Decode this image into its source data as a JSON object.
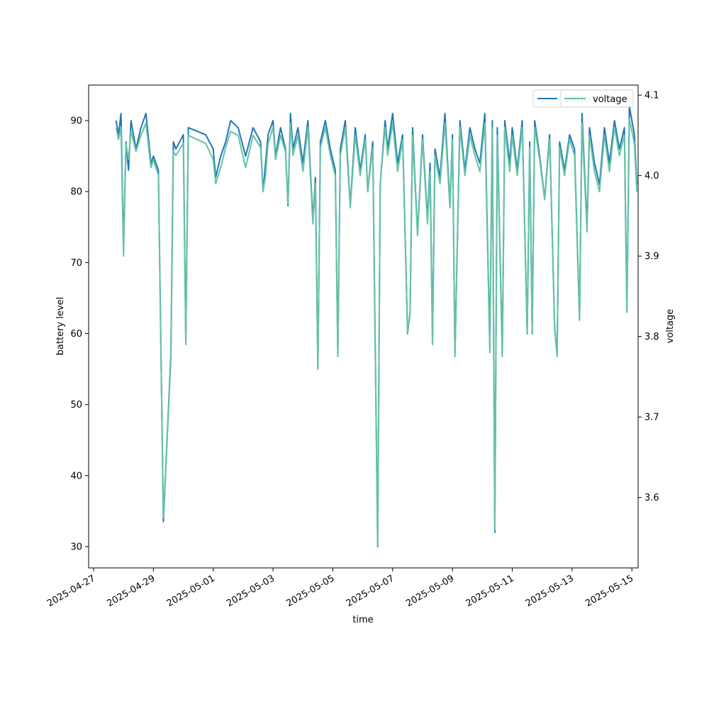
{
  "chart_data": {
    "type": "line",
    "title": "",
    "xlabel": "time",
    "ylabel_left": "battery level",
    "ylabel_right": "voltage",
    "grid": false,
    "legend_placement": "top-right",
    "x_tick_labels": [
      "2025-04-27",
      "2025-04-29",
      "2025-05-01",
      "2025-05-03",
      "2025-05-05",
      "2025-05-07",
      "2025-05-09",
      "2025-05-11",
      "2025-05-13",
      "2025-05-15"
    ],
    "xlim": [
      "2025-04-26 20:00",
      "2025-05-15 05:00"
    ],
    "ylim_left": [
      27,
      95
    ],
    "ylim_right": [
      3.5125,
      4.1125
    ],
    "y_left_ticks": [
      30,
      40,
      50,
      60,
      70,
      80,
      90
    ],
    "y_right_ticks": [
      3.6,
      3.7,
      3.8,
      3.9,
      4.0,
      4.1
    ],
    "series": [
      {
        "name": "battery",
        "axis": "left",
        "color": "#1f77b4",
        "points": [
          [
            "2025-04-27 18:00",
            90
          ],
          [
            "2025-04-27 20:00",
            88
          ],
          [
            "2025-04-27 22:00",
            91
          ],
          [
            "2025-04-28 00:00",
            72
          ],
          [
            "2025-04-28 02:00",
            87
          ],
          [
            "2025-04-28 04:00",
            83
          ],
          [
            "2025-04-28 06:00",
            90
          ],
          [
            "2025-04-28 10:00",
            86
          ],
          [
            "2025-04-28 14:00",
            89
          ],
          [
            "2025-04-28 18:00",
            91
          ],
          [
            "2025-04-28 22:00",
            84
          ],
          [
            "2025-04-29 00:00",
            85
          ],
          [
            "2025-04-29 04:00",
            83
          ],
          [
            "2025-04-29 08:00",
            33.5
          ],
          [
            "2025-04-29 14:00",
            57
          ],
          [
            "2025-04-29 16:00",
            87
          ],
          [
            "2025-04-29 18:00",
            86
          ],
          [
            "2025-04-30 00:00",
            88
          ],
          [
            "2025-04-30 02:00",
            59
          ],
          [
            "2025-04-30 04:00",
            89
          ],
          [
            "2025-04-30 18:00",
            88
          ],
          [
            "2025-05-01 00:00",
            86
          ],
          [
            "2025-05-01 02:00",
            82
          ],
          [
            "2025-05-01 06:00",
            85
          ],
          [
            "2025-05-01 10:00",
            87
          ],
          [
            "2025-05-01 14:00",
            90
          ],
          [
            "2025-05-01 20:00",
            89
          ],
          [
            "2025-05-02 02:00",
            85
          ],
          [
            "2025-05-02 08:00",
            89
          ],
          [
            "2025-05-02 14:00",
            87
          ],
          [
            "2025-05-02 16:00",
            80
          ],
          [
            "2025-05-02 18:00",
            84
          ],
          [
            "2025-05-02 20:00",
            88
          ],
          [
            "2025-05-03 00:00",
            90
          ],
          [
            "2025-05-03 02:00",
            85
          ],
          [
            "2025-05-03 06:00",
            89
          ],
          [
            "2025-05-03 10:00",
            86
          ],
          [
            "2025-05-03 12:00",
            78
          ],
          [
            "2025-05-03 14:00",
            91
          ],
          [
            "2025-05-03 16:00",
            86
          ],
          [
            "2025-05-03 20:00",
            89
          ],
          [
            "2025-05-04 00:00",
            84
          ],
          [
            "2025-05-04 04:00",
            90
          ],
          [
            "2025-05-04 08:00",
            76
          ],
          [
            "2025-05-04 10:00",
            82
          ],
          [
            "2025-05-04 12:00",
            55
          ],
          [
            "2025-05-04 14:00",
            87
          ],
          [
            "2025-05-04 18:00",
            90
          ],
          [
            "2025-05-04 22:00",
            86
          ],
          [
            "2025-05-05 02:00",
            83
          ],
          [
            "2025-05-05 04:00",
            57
          ],
          [
            "2025-05-05 06:00",
            86
          ],
          [
            "2025-05-05 10:00",
            90
          ],
          [
            "2025-05-05 14:00",
            78
          ],
          [
            "2025-05-05 18:00",
            89
          ],
          [
            "2025-05-05 22:00",
            83
          ],
          [
            "2025-05-06 02:00",
            88
          ],
          [
            "2025-05-06 04:00",
            80
          ],
          [
            "2025-05-06 08:00",
            87
          ],
          [
            "2025-05-06 12:00",
            30
          ],
          [
            "2025-05-06 14:00",
            81
          ],
          [
            "2025-05-06 18:00",
            90
          ],
          [
            "2025-05-06 20:00",
            86
          ],
          [
            "2025-05-07 00:00",
            91
          ],
          [
            "2025-05-07 04:00",
            84
          ],
          [
            "2025-05-07 08:00",
            88
          ],
          [
            "2025-05-07 12:00",
            60
          ],
          [
            "2025-05-07 14:00",
            63
          ],
          [
            "2025-05-07 16:00",
            89
          ],
          [
            "2025-05-07 20:00",
            74
          ],
          [
            "2025-05-08 00:00",
            88
          ],
          [
            "2025-05-08 04:00",
            76
          ],
          [
            "2025-05-08 06:00",
            84
          ],
          [
            "2025-05-08 08:00",
            59
          ],
          [
            "2025-05-08 10:00",
            86
          ],
          [
            "2025-05-08 14:00",
            82
          ],
          [
            "2025-05-08 18:00",
            91
          ],
          [
            "2025-05-08 22:00",
            78
          ],
          [
            "2025-05-09 00:00",
            88
          ],
          [
            "2025-05-09 02:00",
            57
          ],
          [
            "2025-05-09 06:00",
            90
          ],
          [
            "2025-05-09 10:00",
            83
          ],
          [
            "2025-05-09 14:00",
            89
          ],
          [
            "2025-05-09 18:00",
            86
          ],
          [
            "2025-05-09 22:00",
            84
          ],
          [
            "2025-05-10 02:00",
            91
          ],
          [
            "2025-05-10 06:00",
            58
          ],
          [
            "2025-05-10 08:00",
            90
          ],
          [
            "2025-05-10 10:00",
            32
          ],
          [
            "2025-05-10 12:00",
            89
          ],
          [
            "2025-05-10 16:00",
            57
          ],
          [
            "2025-05-10 18:00",
            90
          ],
          [
            "2025-05-10 22:00",
            84
          ],
          [
            "2025-05-11 00:00",
            89
          ],
          [
            "2025-05-11 04:00",
            83
          ],
          [
            "2025-05-11 08:00",
            90
          ],
          [
            "2025-05-11 12:00",
            60
          ],
          [
            "2025-05-11 14:00",
            87
          ],
          [
            "2025-05-11 16:00",
            60
          ],
          [
            "2025-05-11 18:00",
            90
          ],
          [
            "2025-05-11 22:00",
            85
          ],
          [
            "2025-05-12 02:00",
            79
          ],
          [
            "2025-05-12 06:00",
            88
          ],
          [
            "2025-05-12 10:00",
            61
          ],
          [
            "2025-05-12 12:00",
            57
          ],
          [
            "2025-05-12 14:00",
            87
          ],
          [
            "2025-05-12 18:00",
            83
          ],
          [
            "2025-05-12 22:00",
            88
          ],
          [
            "2025-05-13 02:00",
            86
          ],
          [
            "2025-05-13 06:00",
            62
          ],
          [
            "2025-05-13 08:00",
            91
          ],
          [
            "2025-05-13 12:00",
            75
          ],
          [
            "2025-05-13 14:00",
            89
          ],
          [
            "2025-05-13 18:00",
            84
          ],
          [
            "2025-05-13 22:00",
            81
          ],
          [
            "2025-05-14 02:00",
            89
          ],
          [
            "2025-05-14 06:00",
            84
          ],
          [
            "2025-05-14 10:00",
            90
          ],
          [
            "2025-05-14 14:00",
            86
          ],
          [
            "2025-05-14 18:00",
            89
          ],
          [
            "2025-05-14 20:00",
            63
          ],
          [
            "2025-05-14 22:00",
            92
          ],
          [
            "2025-05-15 02:00",
            88
          ],
          [
            "2025-05-15 04:00",
            81
          ]
        ]
      },
      {
        "name": "voltage",
        "axis": "right",
        "color": "#66c2a5",
        "points": [
          [
            "2025-04-27 18:00",
            4.06
          ],
          [
            "2025-04-27 20:00",
            4.045
          ],
          [
            "2025-04-27 22:00",
            4.06
          ],
          [
            "2025-04-28 00:00",
            3.9
          ],
          [
            "2025-04-28 02:00",
            4.04
          ],
          [
            "2025-04-28 04:00",
            4.02
          ],
          [
            "2025-04-28 06:00",
            4.055
          ],
          [
            "2025-04-28 10:00",
            4.03
          ],
          [
            "2025-04-28 14:00",
            4.05
          ],
          [
            "2025-04-28 18:00",
            4.065
          ],
          [
            "2025-04-28 22:00",
            4.01
          ],
          [
            "2025-04-29 00:00",
            4.02
          ],
          [
            "2025-04-29 04:00",
            4.0
          ],
          [
            "2025-04-29 08:00",
            3.575
          ],
          [
            "2025-04-29 14:00",
            3.77
          ],
          [
            "2025-04-29 16:00",
            4.03
          ],
          [
            "2025-04-29 18:00",
            4.025
          ],
          [
            "2025-04-30 00:00",
            4.04
          ],
          [
            "2025-04-30 02:00",
            3.79
          ],
          [
            "2025-04-30 04:00",
            4.05
          ],
          [
            "2025-04-30 18:00",
            4.04
          ],
          [
            "2025-05-01 00:00",
            4.02
          ],
          [
            "2025-05-01 02:00",
            3.99
          ],
          [
            "2025-05-01 06:00",
            4.01
          ],
          [
            "2025-05-01 10:00",
            4.035
          ],
          [
            "2025-05-01 14:00",
            4.055
          ],
          [
            "2025-05-01 20:00",
            4.05
          ],
          [
            "2025-05-02 02:00",
            4.01
          ],
          [
            "2025-05-02 08:00",
            4.05
          ],
          [
            "2025-05-02 14:00",
            4.035
          ],
          [
            "2025-05-02 16:00",
            3.98
          ],
          [
            "2025-05-02 18:00",
            4.0
          ],
          [
            "2025-05-02 20:00",
            4.04
          ],
          [
            "2025-05-03 00:00",
            4.06
          ],
          [
            "2025-05-03 02:00",
            4.02
          ],
          [
            "2025-05-03 06:00",
            4.05
          ],
          [
            "2025-05-03 10:00",
            4.03
          ],
          [
            "2025-05-03 12:00",
            3.965
          ],
          [
            "2025-05-03 14:00",
            4.065
          ],
          [
            "2025-05-03 16:00",
            4.025
          ],
          [
            "2025-05-03 20:00",
            4.05
          ],
          [
            "2025-05-04 00:00",
            4.005
          ],
          [
            "2025-05-04 04:00",
            4.06
          ],
          [
            "2025-05-04 08:00",
            3.94
          ],
          [
            "2025-05-04 10:00",
            3.99
          ],
          [
            "2025-05-04 12:00",
            3.76
          ],
          [
            "2025-05-04 14:00",
            4.035
          ],
          [
            "2025-05-04 18:00",
            4.06
          ],
          [
            "2025-05-04 22:00",
            4.025
          ],
          [
            "2025-05-05 02:00",
            4.0
          ],
          [
            "2025-05-05 04:00",
            3.775
          ],
          [
            "2025-05-05 06:00",
            4.025
          ],
          [
            "2025-05-05 10:00",
            4.06
          ],
          [
            "2025-05-05 14:00",
            3.96
          ],
          [
            "2025-05-05 18:00",
            4.05
          ],
          [
            "2025-05-05 22:00",
            4.0
          ],
          [
            "2025-05-06 02:00",
            4.045
          ],
          [
            "2025-05-06 04:00",
            3.98
          ],
          [
            "2025-05-06 08:00",
            4.035
          ],
          [
            "2025-05-06 12:00",
            3.54
          ],
          [
            "2025-05-06 14:00",
            3.99
          ],
          [
            "2025-05-06 18:00",
            4.06
          ],
          [
            "2025-05-06 20:00",
            4.025
          ],
          [
            "2025-05-07 00:00",
            4.065
          ],
          [
            "2025-05-07 04:00",
            4.005
          ],
          [
            "2025-05-07 08:00",
            4.045
          ],
          [
            "2025-05-07 12:00",
            3.805
          ],
          [
            "2025-05-07 14:00",
            3.83
          ],
          [
            "2025-05-07 16:00",
            4.05
          ],
          [
            "2025-05-07 20:00",
            3.925
          ],
          [
            "2025-05-08 00:00",
            4.045
          ],
          [
            "2025-05-08 04:00",
            3.94
          ],
          [
            "2025-05-08 06:00",
            4.005
          ],
          [
            "2025-05-08 08:00",
            3.79
          ],
          [
            "2025-05-08 10:00",
            4.025
          ],
          [
            "2025-05-08 14:00",
            3.99
          ],
          [
            "2025-05-08 18:00",
            4.065
          ],
          [
            "2025-05-08 22:00",
            3.96
          ],
          [
            "2025-05-09 00:00",
            4.045
          ],
          [
            "2025-05-09 02:00",
            3.775
          ],
          [
            "2025-05-09 06:00",
            4.06
          ],
          [
            "2025-05-09 10:00",
            4.0
          ],
          [
            "2025-05-09 14:00",
            4.05
          ],
          [
            "2025-05-09 18:00",
            4.025
          ],
          [
            "2025-05-09 22:00",
            4.005
          ],
          [
            "2025-05-10 02:00",
            4.065
          ],
          [
            "2025-05-10 06:00",
            3.78
          ],
          [
            "2025-05-10 08:00",
            4.06
          ],
          [
            "2025-05-10 10:00",
            3.56
          ],
          [
            "2025-05-10 12:00",
            4.05
          ],
          [
            "2025-05-10 16:00",
            3.775
          ],
          [
            "2025-05-10 18:00",
            4.06
          ],
          [
            "2025-05-10 22:00",
            4.005
          ],
          [
            "2025-05-11 00:00",
            4.05
          ],
          [
            "2025-05-11 04:00",
            4.0
          ],
          [
            "2025-05-11 08:00",
            4.06
          ],
          [
            "2025-05-11 12:00",
            3.805
          ],
          [
            "2025-05-11 14:00",
            4.035
          ],
          [
            "2025-05-11 16:00",
            3.805
          ],
          [
            "2025-05-11 18:00",
            4.06
          ],
          [
            "2025-05-11 22:00",
            4.02
          ],
          [
            "2025-05-12 02:00",
            3.97
          ],
          [
            "2025-05-12 06:00",
            4.045
          ],
          [
            "2025-05-12 10:00",
            3.81
          ],
          [
            "2025-05-12 12:00",
            3.775
          ],
          [
            "2025-05-12 14:00",
            4.035
          ],
          [
            "2025-05-12 18:00",
            4.0
          ],
          [
            "2025-05-12 22:00",
            4.045
          ],
          [
            "2025-05-13 02:00",
            4.025
          ],
          [
            "2025-05-13 06:00",
            3.82
          ],
          [
            "2025-05-13 08:00",
            4.065
          ],
          [
            "2025-05-13 12:00",
            3.93
          ],
          [
            "2025-05-13 14:00",
            4.05
          ],
          [
            "2025-05-13 18:00",
            4.005
          ],
          [
            "2025-05-13 22:00",
            3.98
          ],
          [
            "2025-05-14 02:00",
            4.05
          ],
          [
            "2025-05-14 06:00",
            4.005
          ],
          [
            "2025-05-14 10:00",
            4.06
          ],
          [
            "2025-05-14 14:00",
            4.025
          ],
          [
            "2025-05-14 18:00",
            4.05
          ],
          [
            "2025-05-14 20:00",
            3.83
          ],
          [
            "2025-05-14 22:00",
            4.07
          ],
          [
            "2025-05-15 02:00",
            4.04
          ],
          [
            "2025-05-15 04:00",
            3.98
          ]
        ]
      }
    ],
    "legend": [
      {
        "label": "battery",
        "color": "#1f77b4"
      },
      {
        "label": "voltage",
        "color": "#66c2a5"
      }
    ]
  }
}
